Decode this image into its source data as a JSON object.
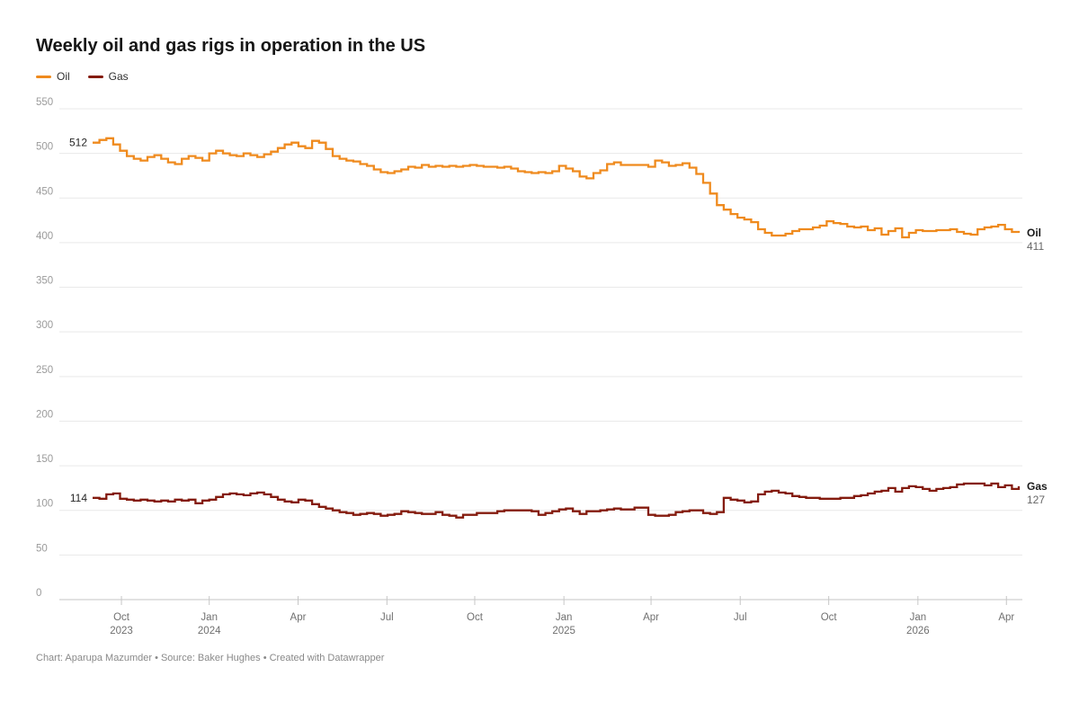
{
  "title": "Weekly oil and gas rigs in operation in the US",
  "footer": "Chart: Aparupa Mazumder • Source: Baker Hughes • Created with Datawrapper",
  "legend": [
    {
      "label": "Oil",
      "color": "#EF8A1D"
    },
    {
      "label": "Gas",
      "color": "#841B0E"
    }
  ],
  "colors": {
    "oil": "#EF8A1D",
    "gas": "#841B0E",
    "grid": "#e9e9e9",
    "axis": "#c6c6c6",
    "y_label": "#9b9b9b",
    "x_label": "#707070"
  },
  "chart_data": {
    "type": "line",
    "step": true,
    "title": "Weekly oil and gas rigs in operation in the US",
    "xlabel": "",
    "ylabel": "",
    "ylim": [
      0,
      550
    ],
    "grid": "horizontal",
    "legend_position": "top-left",
    "y_ticks": [
      0,
      50,
      100,
      150,
      200,
      250,
      300,
      350,
      400,
      450,
      500,
      550
    ],
    "x_ticks": [
      {
        "week": 4.2,
        "label": "Oct",
        "year": "2023"
      },
      {
        "week": 17.0,
        "label": "Jan",
        "year": "2024"
      },
      {
        "week": 29.95,
        "label": "Apr"
      },
      {
        "week": 42.9,
        "label": "Jul"
      },
      {
        "week": 55.7,
        "label": "Oct"
      },
      {
        "week": 68.7,
        "label": "Jan",
        "year": "2025"
      },
      {
        "week": 81.4,
        "label": "Apr"
      },
      {
        "week": 94.4,
        "label": "Jul"
      },
      {
        "week": 107.3,
        "label": "Oct"
      },
      {
        "week": 120.3,
        "label": "Jan",
        "year": "2026"
      },
      {
        "week": 133.2,
        "label": "Apr"
      }
    ],
    "x_unit": "week",
    "series": [
      {
        "name": "Oil",
        "color": "#EF8A1D",
        "start_label": 512,
        "end_label": 411,
        "values": [
          512,
          515,
          517,
          510,
          503,
          497,
          494,
          492,
          496,
          498,
          494,
          490,
          488,
          494,
          497,
          495,
          492,
          500,
          503,
          500,
          498,
          497,
          500,
          498,
          496,
          499,
          502,
          506,
          510,
          512,
          508,
          506,
          514,
          512,
          505,
          497,
          494,
          492,
          491,
          488,
          486,
          482,
          479,
          478,
          480,
          482,
          485,
          484,
          487,
          485,
          486,
          485,
          486,
          485,
          486,
          487,
          486,
          485,
          485,
          484,
          485,
          483,
          480,
          479,
          478,
          479,
          478,
          480,
          486,
          483,
          480,
          474,
          472,
          478,
          481,
          488,
          490,
          487,
          487,
          487,
          487,
          485,
          492,
          490,
          486,
          487,
          489,
          484,
          477,
          467,
          455,
          442,
          437,
          432,
          428,
          426,
          423,
          415,
          411,
          408,
          408,
          410,
          413,
          415,
          415,
          417,
          419,
          424,
          422,
          421,
          418,
          417,
          418,
          414,
          416,
          409,
          413,
          416,
          406,
          411,
          414,
          413,
          413,
          414,
          414,
          415,
          412,
          410,
          409,
          415,
          417,
          418,
          420,
          415,
          412,
          411
        ]
      },
      {
        "name": "Gas",
        "color": "#841B0E",
        "start_label": 114,
        "end_label": 127,
        "values": [
          114,
          113,
          118,
          119,
          113,
          112,
          111,
          112,
          111,
          110,
          111,
          110,
          112,
          111,
          112,
          108,
          111,
          112,
          115,
          118,
          119,
          118,
          117,
          119,
          120,
          118,
          115,
          112,
          110,
          109,
          112,
          111,
          107,
          104,
          102,
          100,
          98,
          97,
          95,
          96,
          97,
          96,
          94,
          95,
          96,
          99,
          98,
          97,
          96,
          96,
          98,
          95,
          94,
          92,
          95,
          95,
          97,
          97,
          97,
          99,
          100,
          100,
          100,
          100,
          99,
          95,
          97,
          99,
          101,
          102,
          99,
          96,
          99,
          99,
          100,
          101,
          102,
          101,
          101,
          103,
          103,
          95,
          94,
          94,
          95,
          98,
          99,
          100,
          100,
          97,
          96,
          98,
          114,
          112,
          111,
          109,
          110,
          118,
          121,
          122,
          120,
          119,
          116,
          115,
          114,
          114,
          113,
          113,
          113,
          114,
          114,
          116,
          117,
          119,
          121,
          122,
          125,
          121,
          125,
          127,
          126,
          124,
          122,
          124,
          125,
          126,
          129,
          130,
          130,
          130,
          128,
          130,
          126,
          128,
          124,
          127
        ]
      }
    ]
  }
}
